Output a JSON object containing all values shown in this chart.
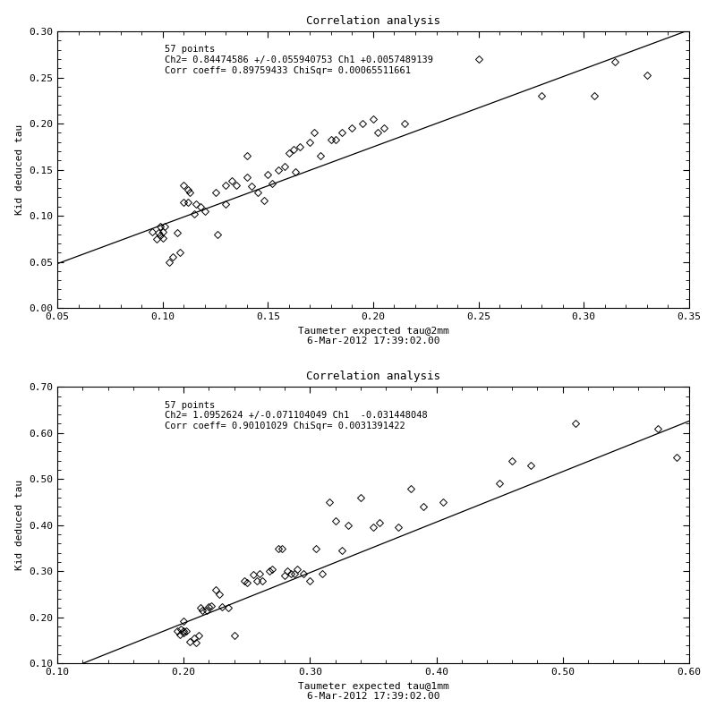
{
  "plot1": {
    "title": "Correlation analysis",
    "xlabel": "Taumeter expected tau@2mm",
    "ylabel": "Kid deduced tau",
    "xlabel2": "6-Mar-2012 17:39:02.00",
    "xlim": [
      0.05,
      0.35
    ],
    "ylim": [
      0.0,
      0.3
    ],
    "xticks": [
      0.05,
      0.1,
      0.15,
      0.2,
      0.25,
      0.3,
      0.35
    ],
    "yticks": [
      0.0,
      0.05,
      0.1,
      0.15,
      0.2,
      0.25,
      0.3
    ],
    "annotation_line1": "57 points",
    "annotation_line2": "Ch2= 0.84474586 +/-0.055940753 Ch1 +0.0057489139",
    "annotation_line3": "Corr coeff= 0.89759433 ChiSqr= 0.00065511661",
    "slope": 0.84474586,
    "intercept": 0.0057489139,
    "x": [
      0.095,
      0.097,
      0.098,
      0.099,
      0.099,
      0.1,
      0.1,
      0.101,
      0.103,
      0.105,
      0.107,
      0.108,
      0.11,
      0.11,
      0.112,
      0.112,
      0.113,
      0.115,
      0.116,
      0.118,
      0.12,
      0.125,
      0.126,
      0.13,
      0.13,
      0.133,
      0.135,
      0.14,
      0.14,
      0.142,
      0.145,
      0.148,
      0.15,
      0.152,
      0.155,
      0.158,
      0.16,
      0.162,
      0.163,
      0.165,
      0.17,
      0.172,
      0.175,
      0.18,
      0.182,
      0.185,
      0.19,
      0.195,
      0.2,
      0.202,
      0.205,
      0.215,
      0.25,
      0.28,
      0.305,
      0.315,
      0.33
    ],
    "y": [
      0.083,
      0.075,
      0.082,
      0.079,
      0.088,
      0.083,
      0.076,
      0.088,
      0.05,
      0.055,
      0.082,
      0.06,
      0.133,
      0.115,
      0.115,
      0.128,
      0.125,
      0.102,
      0.113,
      0.11,
      0.105,
      0.125,
      0.08,
      0.113,
      0.133,
      0.138,
      0.133,
      0.142,
      0.165,
      0.132,
      0.125,
      0.117,
      0.145,
      0.135,
      0.15,
      0.153,
      0.168,
      0.172,
      0.148,
      0.175,
      0.18,
      0.19,
      0.165,
      0.183,
      0.183,
      0.19,
      0.195,
      0.2,
      0.205,
      0.19,
      0.195,
      0.2,
      0.27,
      0.23,
      0.23,
      0.267,
      0.252
    ]
  },
  "plot2": {
    "title": "Correlation analysis",
    "xlabel": "Taumeter expected tau@1mm",
    "ylabel": "Kid deduced tau",
    "xlabel2": "6-Mar-2012 17:39:02.00",
    "xlim": [
      0.1,
      0.6
    ],
    "ylim": [
      0.1,
      0.7
    ],
    "xticks": [
      0.1,
      0.2,
      0.3,
      0.4,
      0.5,
      0.6
    ],
    "yticks": [
      0.1,
      0.2,
      0.3,
      0.4,
      0.5,
      0.6,
      0.7
    ],
    "annotation_line1": "57 points",
    "annotation_line2": "Ch2= 1.0952624 +/-0.071104049 Ch1  -0.031448048",
    "annotation_line3": "Corr coeff= 0.90101029 ChiSqr= 0.0031391422",
    "slope": 1.0952624,
    "intercept": -0.031448048,
    "x": [
      0.195,
      0.197,
      0.198,
      0.2,
      0.2,
      0.2,
      0.202,
      0.205,
      0.208,
      0.21,
      0.212,
      0.213,
      0.215,
      0.218,
      0.22,
      0.222,
      0.225,
      0.228,
      0.23,
      0.235,
      0.24,
      0.248,
      0.25,
      0.255,
      0.258,
      0.26,
      0.262,
      0.268,
      0.27,
      0.275,
      0.278,
      0.28,
      0.282,
      0.285,
      0.288,
      0.29,
      0.295,
      0.3,
      0.305,
      0.31,
      0.315,
      0.32,
      0.325,
      0.33,
      0.34,
      0.35,
      0.355,
      0.37,
      0.38,
      0.39,
      0.405,
      0.45,
      0.46,
      0.475,
      0.51,
      0.575,
      0.59
    ],
    "y": [
      0.17,
      0.163,
      0.175,
      0.192,
      0.17,
      0.167,
      0.17,
      0.148,
      0.155,
      0.145,
      0.16,
      0.22,
      0.215,
      0.215,
      0.222,
      0.225,
      0.26,
      0.25,
      0.222,
      0.22,
      0.16,
      0.28,
      0.275,
      0.292,
      0.28,
      0.295,
      0.28,
      0.3,
      0.305,
      0.35,
      0.35,
      0.29,
      0.3,
      0.295,
      0.295,
      0.305,
      0.295,
      0.28,
      0.35,
      0.295,
      0.45,
      0.41,
      0.345,
      0.4,
      0.46,
      0.395,
      0.405,
      0.395,
      0.48,
      0.44,
      0.45,
      0.49,
      0.54,
      0.53,
      0.62,
      0.61,
      0.548
    ]
  },
  "background_color": "#ffffff",
  "marker": "D",
  "markersize": 4,
  "markerfacecolor": "none",
  "markeredgecolor": "#000000",
  "linecolor": "#000000",
  "title_fontsize": 9,
  "label_fontsize": 8,
  "tick_fontsize": 8,
  "annot_fontsize": 7.5
}
